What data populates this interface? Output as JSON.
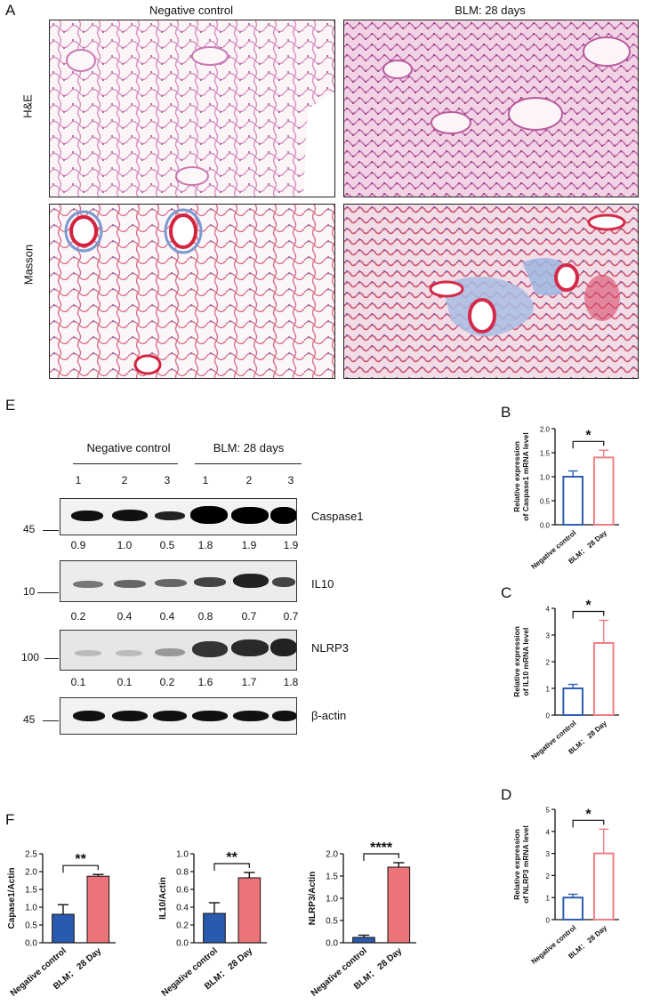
{
  "panel_a": {
    "letter": "A",
    "columns": [
      "Negative control",
      "BLM: 28 days"
    ],
    "rows": [
      "H&E",
      "Masson"
    ]
  },
  "panel_e": {
    "letter": "E",
    "groups": [
      "Negative control",
      "BLM: 28 days"
    ],
    "lanes": [
      "1",
      "2",
      "3",
      "1",
      "2",
      "3"
    ],
    "blots": [
      {
        "label": "Caspase1",
        "marker": "45",
        "quant": [
          "0.9",
          "1.0",
          "0.5",
          "1.8",
          "1.9",
          "1.9"
        ]
      },
      {
        "label": "IL10",
        "marker": "10",
        "quant": [
          "0.2",
          "0.4",
          "0.4",
          "0.8",
          "0.7",
          "0.7"
        ]
      },
      {
        "label": "NLRP3",
        "marker": "100",
        "quant": [
          "0.1",
          "0.1",
          "0.2",
          "1.6",
          "1.7",
          "1.8"
        ]
      },
      {
        "label": "β-actin",
        "marker": "45",
        "quant": []
      }
    ]
  },
  "panel_b": {
    "letter": "B"
  },
  "panel_c": {
    "letter": "C"
  },
  "panel_d": {
    "letter": "D"
  },
  "panel_f": {
    "letter": "F"
  },
  "colors": {
    "blue": "#2a5aad",
    "pink": "#ec7378",
    "blue_outline": "#2f5fb3",
    "pink_outline": "#ee7f84"
  },
  "chart_data": [
    {
      "id": "B",
      "type": "bar",
      "style": "outline",
      "categories": [
        "Negative control",
        "BLM： 28 Day"
      ],
      "values": [
        1.0,
        1.4
      ],
      "errors": [
        0.12,
        0.15
      ],
      "ylabel": "Relative expression of Caspase1 mRNA level",
      "ylim": [
        0,
        2.0
      ],
      "yticks": [
        "0.0",
        "0.5",
        "1.0",
        "1.5",
        "2.0"
      ],
      "significance": "*"
    },
    {
      "id": "C",
      "type": "bar",
      "style": "outline",
      "categories": [
        "Negative control",
        "BLM： 28 Day"
      ],
      "values": [
        1.0,
        2.7
      ],
      "errors": [
        0.15,
        0.85
      ],
      "ylabel": "Relative expression of IL10 mRNA level",
      "ylim": [
        0,
        4
      ],
      "yticks": [
        "0",
        "1",
        "2",
        "3",
        "4"
      ],
      "significance": "*"
    },
    {
      "id": "D",
      "type": "bar",
      "style": "outline",
      "categories": [
        "Negative control",
        "BLM： 28 Day"
      ],
      "values": [
        1.0,
        3.0
      ],
      "errors": [
        0.15,
        1.1
      ],
      "ylabel": "Relative expression of NLRP3 mRNA level",
      "ylim": [
        0,
        5
      ],
      "yticks": [
        "0",
        "1",
        "2",
        "3",
        "4",
        "5"
      ],
      "significance": "*"
    },
    {
      "id": "F1",
      "type": "bar",
      "style": "filled",
      "categories": [
        "Negative control",
        "BLM： 28 Day"
      ],
      "values": [
        0.8,
        1.87
      ],
      "errors": [
        0.27,
        0.05
      ],
      "ylabel": "Capase1/Actin",
      "ylim": [
        0,
        2.5
      ],
      "yticks": [
        "0.0",
        "0.5",
        "1.0",
        "1.5",
        "2.0",
        "2.5"
      ],
      "significance": "**"
    },
    {
      "id": "F2",
      "type": "bar",
      "style": "filled",
      "categories": [
        "Negative control",
        "BLM： 28 Day"
      ],
      "values": [
        0.33,
        0.73
      ],
      "errors": [
        0.12,
        0.06
      ],
      "ylabel": "IL10/Actin",
      "ylim": [
        0,
        1.0
      ],
      "yticks": [
        "0.0",
        "0.2",
        "0.4",
        "0.6",
        "0.8",
        "1.0"
      ],
      "significance": "**"
    },
    {
      "id": "F3",
      "type": "bar",
      "style": "filled",
      "categories": [
        "Negative control",
        "BLM： 28 Day"
      ],
      "values": [
        0.12,
        1.7
      ],
      "errors": [
        0.05,
        0.1
      ],
      "ylabel": "NLRP3/Actin",
      "ylim": [
        0,
        2.0
      ],
      "yticks": [
        "0.0",
        "0.5",
        "1.0",
        "1.5",
        "2.0"
      ],
      "significance": "****"
    }
  ]
}
